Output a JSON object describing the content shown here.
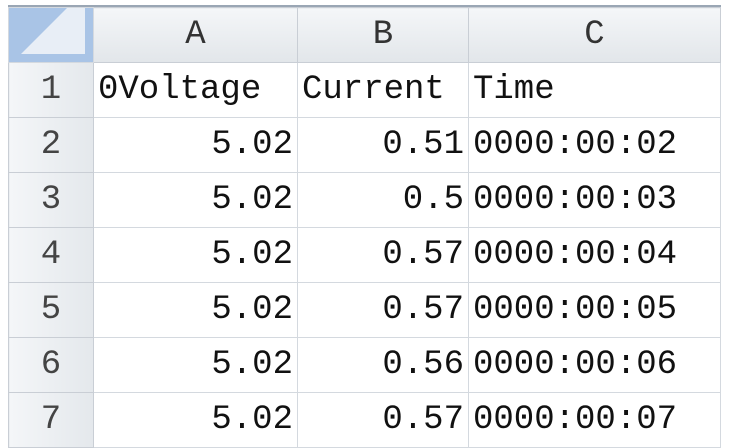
{
  "columns": [
    "A",
    "B",
    "C"
  ],
  "rows": [
    {
      "num": "1",
      "cells": [
        "0Voltage",
        "Current",
        "Time"
      ]
    },
    {
      "num": "2",
      "cells": [
        "5.02",
        "0.51",
        "0000:00:02"
      ]
    },
    {
      "num": "3",
      "cells": [
        "5.02",
        "0.5",
        "0000:00:03"
      ]
    },
    {
      "num": "4",
      "cells": [
        "5.02",
        "0.57",
        "0000:00:04"
      ]
    },
    {
      "num": "5",
      "cells": [
        "5.02",
        "0.57",
        "0000:00:05"
      ]
    },
    {
      "num": "6",
      "cells": [
        "5.02",
        "0.56",
        "0000:00:06"
      ]
    },
    {
      "num": "7",
      "cells": [
        "5.02",
        "0.57",
        "0000:00:07"
      ]
    }
  ],
  "colors": {
    "corner": "#a9c4e6",
    "header": "#e8ebee",
    "grid": "#d4d9df"
  }
}
